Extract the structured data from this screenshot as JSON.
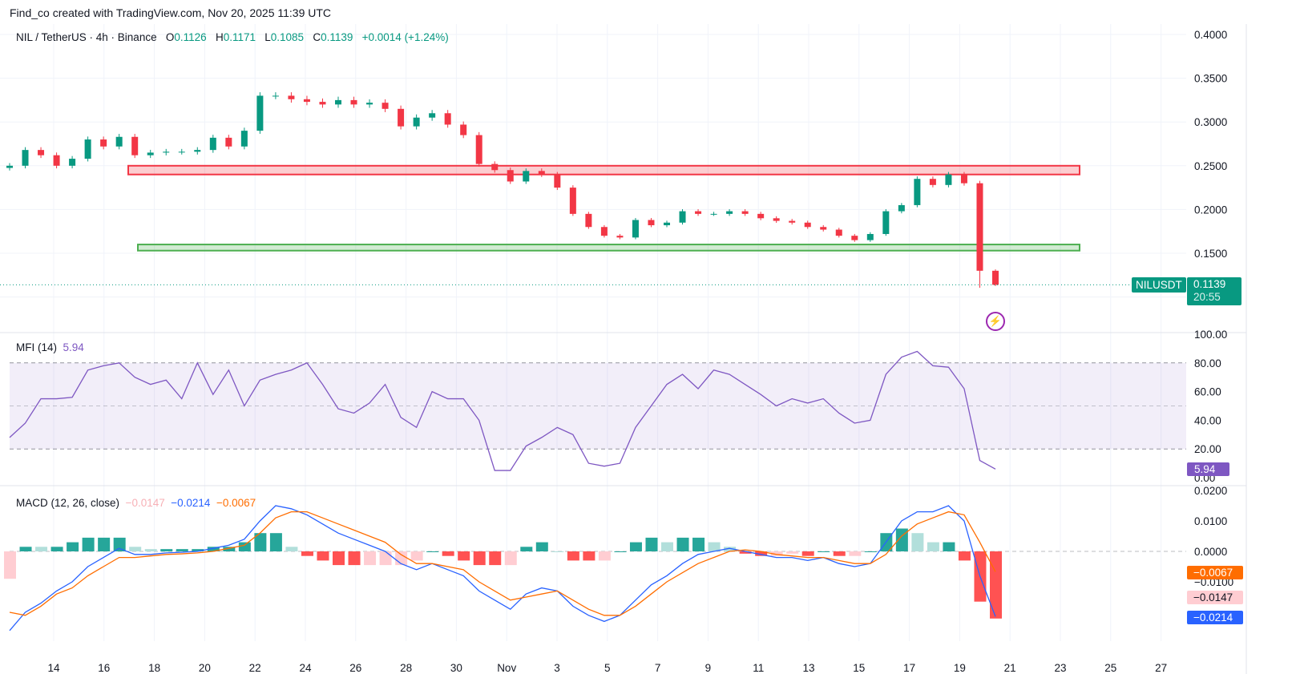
{
  "header": {
    "credit": "Find_co created with TradingView.com, Nov 20, 2025 11:39 UTC"
  },
  "legend": {
    "symbol": "NIL / TetherUS · 4h · Binance",
    "o_label": "O",
    "o": "0.1126",
    "h_label": "H",
    "h": "0.1171",
    "l_label": "L",
    "l": "0.1085",
    "c_label": "C",
    "c": "0.1139",
    "change": "+0.0014 (+1.24%)"
  },
  "mfi_legend": {
    "label": "MFI (14)",
    "value": "5.94"
  },
  "macd_legend": {
    "label": "MACD (12, 26, close)",
    "hist": "−0.0147",
    "macd": "−0.0214",
    "signal": "−0.0067"
  },
  "price_badge": {
    "symbol": "NILUSDT",
    "price": "0.1139",
    "countdown": "20:55"
  },
  "colors": {
    "up": "#089981",
    "down": "#f23645",
    "mfi": "#7e57c2",
    "macd": "#2962ff",
    "signal": "#ff6d00",
    "zone_red": "#f23645",
    "zone_green": "#4caf50"
  },
  "chart_data": [
    {
      "type": "candlestick",
      "title": "NIL / TetherUS · 4h · Binance",
      "y_ticks": [
        "0.4000",
        "0.3500",
        "0.3000",
        "0.2500",
        "0.2000",
        "0.1500"
      ],
      "ylim": [
        0.115,
        0.4
      ],
      "x_ticks": [
        "14",
        "16",
        "18",
        "20",
        "22",
        "24",
        "26",
        "28",
        "30",
        "Nov",
        "3",
        "5",
        "7",
        "9",
        "11",
        "13",
        "15",
        "17",
        "19",
        "21",
        "23",
        "25",
        "27"
      ],
      "closes": [
        0.25,
        0.268,
        0.262,
        0.25,
        0.258,
        0.28,
        0.272,
        0.283,
        0.262,
        0.265,
        0.266,
        0.266,
        0.268,
        0.282,
        0.272,
        0.29,
        0.33,
        0.33,
        0.326,
        0.323,
        0.32,
        0.325,
        0.32,
        0.322,
        0.315,
        0.295,
        0.305,
        0.31,
        0.297,
        0.285,
        0.252,
        0.245,
        0.232,
        0.244,
        0.24,
        0.225,
        0.195,
        0.18,
        0.17,
        0.168,
        0.188,
        0.182,
        0.185,
        0.198,
        0.195,
        0.195,
        0.198,
        0.195,
        0.19,
        0.187,
        0.185,
        0.18,
        0.177,
        0.17,
        0.165,
        0.172,
        0.198,
        0.205,
        0.235,
        0.228,
        0.24,
        0.23,
        0.13,
        0.1139
      ],
      "zones": [
        {
          "name": "resistance",
          "low": 0.24,
          "high": 0.25,
          "color": "#f23645"
        },
        {
          "name": "support",
          "low": 0.153,
          "high": 0.16,
          "color": "#4caf50"
        }
      ]
    },
    {
      "type": "line",
      "title": "MFI (14)",
      "y_ticks": [
        "100.00",
        "80.00",
        "60.00",
        "40.00",
        "20.00",
        "0.00"
      ],
      "ylim": [
        0,
        100
      ],
      "bands": [
        20,
        50,
        80
      ],
      "values": [
        28,
        38,
        55,
        55,
        56,
        75,
        78,
        80,
        70,
        65,
        68,
        55,
        80,
        58,
        75,
        50,
        68,
        72,
        75,
        80,
        65,
        48,
        45,
        52,
        65,
        42,
        35,
        60,
        55,
        55,
        40,
        5,
        5,
        22,
        28,
        35,
        30,
        10,
        8,
        10,
        35,
        50,
        65,
        72,
        62,
        75,
        72,
        65,
        58,
        50,
        55,
        52,
        55,
        45,
        38,
        40,
        72,
        84,
        88,
        78,
        77,
        62,
        12,
        5.94
      ]
    },
    {
      "type": "line+bar",
      "title": "MACD (12, 26, close)",
      "y_ticks": [
        "0.0200",
        "0.0100",
        "0.0000",
        "−0.0100"
      ],
      "ylim": [
        -0.027,
        0.02
      ],
      "macd": [
        -0.026,
        -0.02,
        -0.017,
        -0.013,
        -0.01,
        -0.005,
        -0.002,
        0.001,
        -0.001,
        -0.001,
        -0.0005,
        -0.0003,
        0,
        0.001,
        0.002,
        0.004,
        0.01,
        0.015,
        0.014,
        0.012,
        0.009,
        0.006,
        0.004,
        0.002,
        0,
        -0.004,
        -0.006,
        -0.004,
        -0.006,
        -0.008,
        -0.013,
        -0.016,
        -0.019,
        -0.014,
        -0.012,
        -0.013,
        -0.018,
        -0.021,
        -0.023,
        -0.021,
        -0.016,
        -0.011,
        -0.008,
        -0.004,
        -0.001,
        0,
        0.001,
        0,
        -0.001,
        -0.002,
        -0.002,
        -0.003,
        -0.002,
        -0.004,
        -0.005,
        -0.004,
        0.003,
        0.01,
        0.013,
        0.013,
        0.015,
        0.01,
        -0.008,
        -0.0214
      ],
      "signal": [
        -0.02,
        -0.021,
        -0.018,
        -0.014,
        -0.012,
        -0.008,
        -0.005,
        -0.002,
        -0.002,
        -0.0015,
        -0.001,
        -0.0008,
        -0.0005,
        0,
        0.001,
        0.002,
        0.006,
        0.011,
        0.013,
        0.013,
        0.011,
        0.009,
        0.007,
        0.005,
        0.003,
        -0.001,
        -0.004,
        -0.004,
        -0.005,
        -0.006,
        -0.01,
        -0.013,
        -0.016,
        -0.015,
        -0.014,
        -0.013,
        -0.016,
        -0.019,
        -0.021,
        -0.021,
        -0.018,
        -0.014,
        -0.01,
        -0.007,
        -0.004,
        -0.002,
        0,
        0.0005,
        0,
        -0.001,
        -0.0015,
        -0.002,
        -0.002,
        -0.003,
        -0.004,
        -0.004,
        -0.001,
        0.005,
        0.009,
        0.011,
        0.013,
        0.012,
        0.003,
        -0.0067
      ]
    }
  ]
}
